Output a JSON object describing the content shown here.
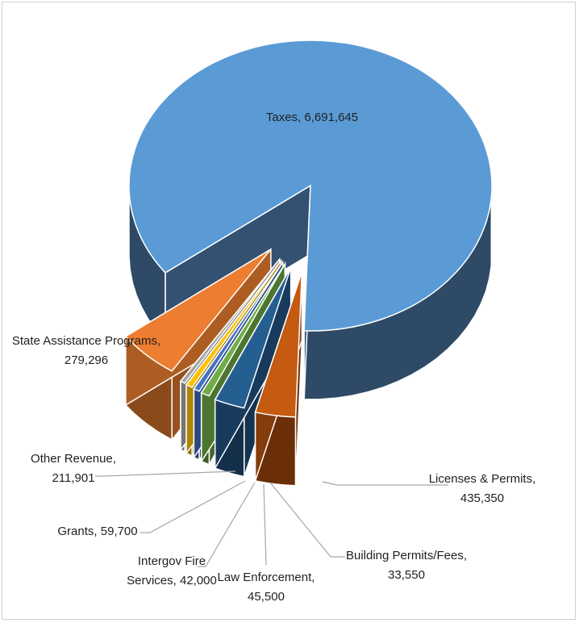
{
  "chart_data": {
    "type": "pie",
    "title": "",
    "exploded_3d": true,
    "slices": [
      {
        "label": "Taxes",
        "value": 6691645,
        "value_text": "6,691,645",
        "color": "#5b9bd5",
        "side_color": "#2e4a66"
      },
      {
        "label": "Licenses & Permits",
        "value": 435350,
        "value_text": "435,350",
        "color": "#ed7d31",
        "side_color": "#8a4a1a"
      },
      {
        "label": "Building Permits/Fees",
        "value": 33550,
        "value_text": "33,550",
        "color": "#a5a5a5",
        "side_color": "#5e5e5e"
      },
      {
        "label": "Law Enforcement",
        "value": 45500,
        "value_text": "45,500",
        "color": "#ffc000",
        "side_color": "#8a6a00"
      },
      {
        "label": "Intergov Fire Services",
        "value": 42000,
        "value_text": "42,000",
        "color": "#4472c4",
        "side_color": "#223a66"
      },
      {
        "label": "Grants",
        "value": 59700,
        "value_text": "59,700",
        "color": "#70ad47",
        "side_color": "#3d5e26"
      },
      {
        "label": "Other Revenue",
        "value": 211901,
        "value_text": "211,901",
        "color": "#255e91",
        "side_color": "#132f4a"
      },
      {
        "label": "State Assistance Programs",
        "value": 279296,
        "value_text": "279,296",
        "color": "#c55a11",
        "side_color": "#6a2f08"
      }
    ]
  }
}
